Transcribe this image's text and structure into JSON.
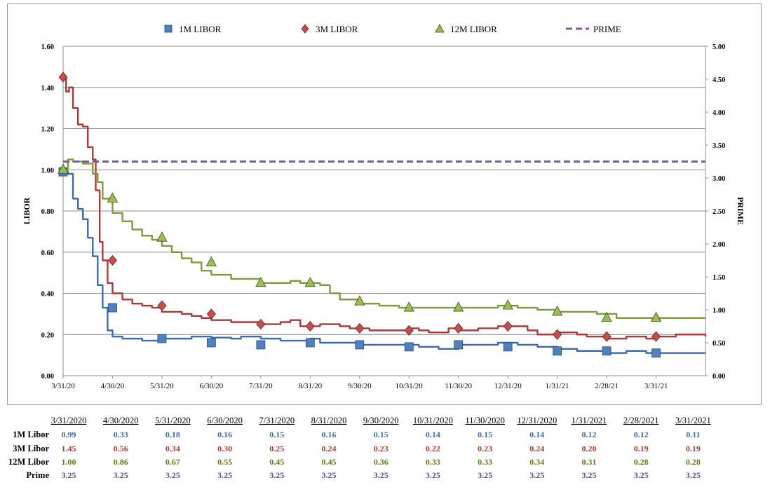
{
  "chart_data": {
    "type": "line",
    "ylabel": "LIBOR",
    "y2label": "PRIME",
    "ylim": [
      0,
      1.6
    ],
    "y2lim": [
      0,
      5.0
    ],
    "yticks": [
      "0.00",
      "0.20",
      "0.40",
      "0.60",
      "0.80",
      "1.00",
      "1.20",
      "1.40",
      "1.60"
    ],
    "y2ticks": [
      "0.00",
      "0.50",
      "1.00",
      "1.50",
      "2.00",
      "2.50",
      "3.00",
      "3.50",
      "4.00",
      "4.50",
      "5.00"
    ],
    "grid": true,
    "legend_position": "top",
    "categories": [
      "3/31/20",
      "4/30/20",
      "5/31/20",
      "6/30/20",
      "7/31/20",
      "8/31/20",
      "9/30/20",
      "10/31/20",
      "11/30/20",
      "12/31/20",
      "1/31/21",
      "2/28/21",
      "3/31/21"
    ],
    "series": [
      {
        "name": "1M LIBOR",
        "color": "#3f6ba8",
        "marker": "square",
        "marker_color": "#4f81bd",
        "axis": "left",
        "values": [
          0.99,
          0.33,
          0.18,
          0.16,
          0.15,
          0.16,
          0.15,
          0.14,
          0.15,
          0.14,
          0.12,
          0.12,
          0.11
        ],
        "path": [
          [
            0,
            0.99
          ],
          [
            0.5,
            0.98
          ],
          [
            1,
            0.86
          ],
          [
            1.5,
            0.81
          ],
          [
            2,
            0.76
          ],
          [
            2.5,
            0.67
          ],
          [
            3,
            0.58
          ],
          [
            3.5,
            0.44
          ],
          [
            4,
            0.33
          ],
          [
            4.5,
            0.22
          ],
          [
            5,
            0.19
          ],
          [
            6,
            0.18
          ],
          [
            8,
            0.17
          ],
          [
            10,
            0.18
          ],
          [
            13,
            0.19
          ],
          [
            15,
            0.185
          ],
          [
            17,
            0.18
          ],
          [
            18,
            0.19
          ],
          [
            20,
            0.18
          ],
          [
            22,
            0.17
          ],
          [
            24,
            0.17
          ],
          [
            25,
            0.18
          ],
          [
            26,
            0.16
          ],
          [
            28,
            0.16
          ],
          [
            30,
            0.15
          ],
          [
            32,
            0.15
          ],
          [
            34,
            0.15
          ],
          [
            36,
            0.14
          ],
          [
            38,
            0.13
          ],
          [
            40,
            0.15
          ],
          [
            42,
            0.15
          ],
          [
            44,
            0.16
          ],
          [
            46,
            0.15
          ],
          [
            48,
            0.14
          ],
          [
            50,
            0.13
          ],
          [
            52,
            0.12
          ],
          [
            54,
            0.12
          ],
          [
            55,
            0.11
          ],
          [
            57,
            0.12
          ],
          [
            59,
            0.11
          ],
          [
            62,
            0.11
          ],
          [
            65,
            0.11
          ]
        ]
      },
      {
        "name": "3M LIBOR",
        "color": "#a83a3a",
        "marker": "diamond",
        "marker_color": "#c0504d",
        "axis": "left",
        "values": [
          1.45,
          0.56,
          0.34,
          0.3,
          0.25,
          0.24,
          0.23,
          0.22,
          0.23,
          0.24,
          0.2,
          0.19,
          0.19
        ],
        "path": [
          [
            0,
            1.45
          ],
          [
            0.3,
            1.38
          ],
          [
            0.6,
            1.4
          ],
          [
            1,
            1.3
          ],
          [
            1.5,
            1.22
          ],
          [
            2,
            1.21
          ],
          [
            2.5,
            1.11
          ],
          [
            3,
            1.05
          ],
          [
            3.3,
            0.9
          ],
          [
            3.7,
            0.65
          ],
          [
            4,
            0.56
          ],
          [
            4.5,
            0.45
          ],
          [
            5,
            0.4
          ],
          [
            6,
            0.37
          ],
          [
            7,
            0.35
          ],
          [
            8,
            0.34
          ],
          [
            9,
            0.33
          ],
          [
            10,
            0.31
          ],
          [
            11,
            0.31
          ],
          [
            12,
            0.3
          ],
          [
            13,
            0.29
          ],
          [
            14,
            0.28
          ],
          [
            15,
            0.27
          ],
          [
            17,
            0.26
          ],
          [
            18,
            0.26
          ],
          [
            20,
            0.25
          ],
          [
            22,
            0.26
          ],
          [
            23,
            0.27
          ],
          [
            24,
            0.24
          ],
          [
            26,
            0.25
          ],
          [
            28,
            0.24
          ],
          [
            29,
            0.23
          ],
          [
            30,
            0.23
          ],
          [
            31,
            0.22
          ],
          [
            33,
            0.22
          ],
          [
            35,
            0.23
          ],
          [
            36,
            0.22
          ],
          [
            37,
            0.21
          ],
          [
            39,
            0.23
          ],
          [
            40,
            0.22
          ],
          [
            42,
            0.23
          ],
          [
            44,
            0.24
          ],
          [
            45,
            0.24
          ],
          [
            47,
            0.22
          ],
          [
            48,
            0.2
          ],
          [
            50,
            0.21
          ],
          [
            52,
            0.2
          ],
          [
            53,
            0.19
          ],
          [
            55,
            0.18
          ],
          [
            57,
            0.19
          ],
          [
            59,
            0.18
          ],
          [
            60,
            0.19
          ],
          [
            62,
            0.2
          ],
          [
            65,
            0.19
          ]
        ]
      },
      {
        "name": "12M LIBOR",
        "color": "#7f9a3c",
        "marker": "triangle",
        "marker_color": "#9bbb59",
        "axis": "left",
        "values": [
          1.0,
          0.86,
          0.67,
          0.55,
          0.45,
          0.45,
          0.36,
          0.33,
          0.33,
          0.34,
          0.31,
          0.28,
          0.28
        ],
        "path": [
          [
            0,
            1.0
          ],
          [
            0.5,
            1.05
          ],
          [
            1,
            1.04
          ],
          [
            2,
            1.03
          ],
          [
            3,
            0.98
          ],
          [
            3.5,
            0.94
          ],
          [
            4,
            0.86
          ],
          [
            5,
            0.79
          ],
          [
            6,
            0.75
          ],
          [
            7,
            0.71
          ],
          [
            8,
            0.68
          ],
          [
            9,
            0.66
          ],
          [
            10,
            0.63
          ],
          [
            11,
            0.6
          ],
          [
            12,
            0.57
          ],
          [
            13,
            0.55
          ],
          [
            14,
            0.51
          ],
          [
            15,
            0.49
          ],
          [
            17,
            0.47
          ],
          [
            18,
            0.47
          ],
          [
            20,
            0.45
          ],
          [
            22,
            0.45
          ],
          [
            23,
            0.46
          ],
          [
            24,
            0.45
          ],
          [
            26,
            0.44
          ],
          [
            27,
            0.4
          ],
          [
            28,
            0.37
          ],
          [
            30,
            0.35
          ],
          [
            32,
            0.34
          ],
          [
            34,
            0.33
          ],
          [
            36,
            0.33
          ],
          [
            38,
            0.33
          ],
          [
            40,
            0.33
          ],
          [
            42,
            0.33
          ],
          [
            44,
            0.34
          ],
          [
            45,
            0.34
          ],
          [
            46,
            0.33
          ],
          [
            48,
            0.32
          ],
          [
            50,
            0.31
          ],
          [
            52,
            0.31
          ],
          [
            54,
            0.3
          ],
          [
            56,
            0.28
          ],
          [
            58,
            0.28
          ],
          [
            60,
            0.28
          ],
          [
            62,
            0.28
          ],
          [
            65,
            0.28
          ]
        ]
      },
      {
        "name": "PRIME",
        "color": "#7b5b9b",
        "dash": true,
        "axis": "right",
        "values": [
          3.25,
          3.25,
          3.25,
          3.25,
          3.25,
          3.25,
          3.25,
          3.25,
          3.25,
          3.25,
          3.25,
          3.25,
          3.25
        ]
      }
    ]
  },
  "table": {
    "headers": [
      "3/31/2020",
      "4/30/2020",
      "5/31/2020",
      "6/30/2020",
      "7/31/2020",
      "8/31/2020",
      "9/30/2020",
      "10/31/2020",
      "11/30/2020",
      "12/31/2020",
      "1/31/2021",
      "2/28/2021",
      "3/31/2021"
    ],
    "rows": [
      {
        "label": "1M Libor",
        "color": "#3f6ba8",
        "values": [
          "0.99",
          "0.33",
          "0.18",
          "0.16",
          "0.15",
          "0.16",
          "0.15",
          "0.14",
          "0.15",
          "0.14",
          "0.12",
          "0.12",
          "0.11"
        ]
      },
      {
        "label": "3M Libor",
        "color": "#a83a3a",
        "values": [
          "1.45",
          "0.56",
          "0.34",
          "0.30",
          "0.25",
          "0.24",
          "0.23",
          "0.22",
          "0.23",
          "0.24",
          "0.20",
          "0.19",
          "0.19"
        ]
      },
      {
        "label": "12M Libor",
        "color": "#5f7a1f",
        "values": [
          "1.00",
          "0.86",
          "0.67",
          "0.55",
          "0.45",
          "0.45",
          "0.36",
          "0.33",
          "0.33",
          "0.34",
          "0.31",
          "0.28",
          "0.28"
        ]
      },
      {
        "label": "Prime",
        "color": "#5f4b8b",
        "values": [
          "3.25",
          "3.25",
          "3.25",
          "3.25",
          "3.25",
          "3.25",
          "3.25",
          "3.25",
          "3.25",
          "3.25",
          "3.25",
          "3.25",
          "3.25"
        ]
      }
    ]
  }
}
